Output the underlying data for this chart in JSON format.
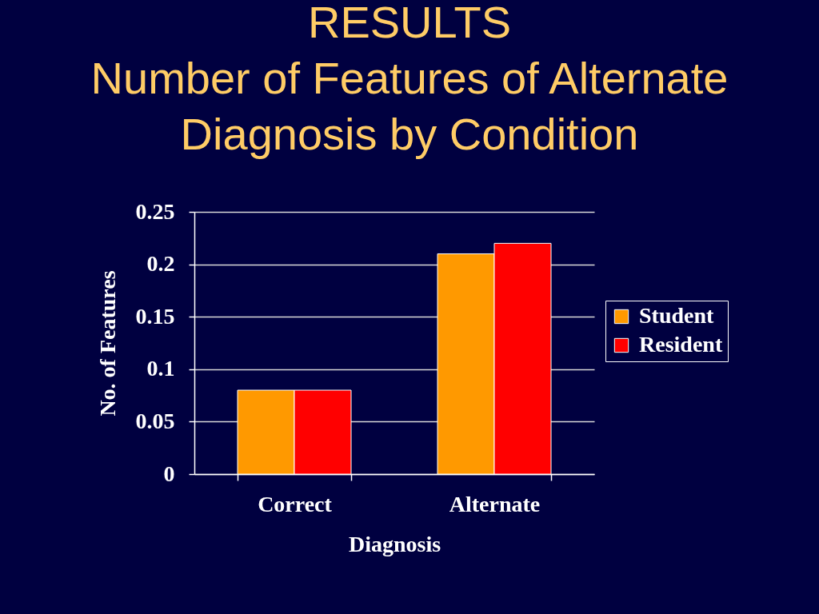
{
  "chart_data": {
    "type": "bar",
    "title": "RESULTS",
    "subtitle": "Number of Features of Alternate Diagnosis by Condition",
    "xlabel": "Diagnosis",
    "ylabel": "No. of Features",
    "categories": [
      "Correct",
      "Alternate"
    ],
    "series": [
      {
        "name": "Student",
        "color": "#ff9900",
        "values": [
          0.08,
          0.21
        ]
      },
      {
        "name": "Resident",
        "color": "#ff0000",
        "values": [
          0.08,
          0.22
        ]
      }
    ],
    "ylim": [
      0,
      0.25
    ],
    "yticks": [
      0,
      0.05,
      0.1,
      0.15,
      0.2,
      0.25
    ],
    "grid": "y",
    "legend": "right"
  }
}
